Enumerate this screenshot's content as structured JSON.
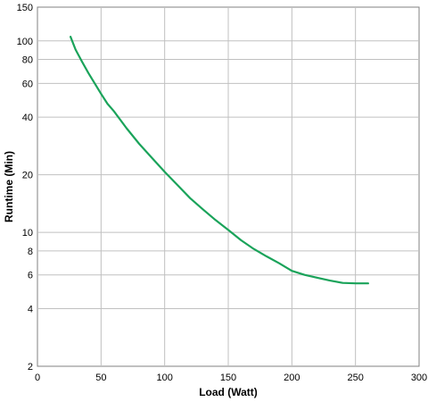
{
  "chart_data": {
    "type": "line",
    "title": "",
    "xlabel": "Load (Watt)",
    "ylabel": "Runtime (Min)",
    "xlim": [
      0,
      300
    ],
    "ylim": [
      2,
      150
    ],
    "yscale": "log",
    "grid": true,
    "legend": "none",
    "x_ticks": [
      0,
      50,
      100,
      150,
      200,
      250,
      300
    ],
    "x_tick_labels": [
      "0",
      "50",
      "100",
      "150",
      "200",
      "250",
      "300"
    ],
    "y_ticks": [
      2,
      4,
      6,
      8,
      10,
      20,
      40,
      60,
      80,
      100,
      150
    ],
    "y_tick_labels": [
      "2",
      "4",
      "6",
      "8",
      "10",
      "20",
      "40",
      "60",
      "80",
      "100",
      "150"
    ],
    "series": [
      {
        "color": "#1aa35a",
        "x": [
          26,
          30,
          35,
          40,
          45,
          50,
          55,
          60,
          70,
          80,
          90,
          100,
          110,
          120,
          130,
          140,
          150,
          160,
          170,
          180,
          190,
          200,
          210,
          220,
          230,
          240,
          250,
          260
        ],
        "y": [
          105,
          90,
          78,
          68,
          60,
          53,
          47,
          43,
          35,
          29,
          24.5,
          20.7,
          17.7,
          15.1,
          13.2,
          11.6,
          10.3,
          9.1,
          8.2,
          7.5,
          6.9,
          6.3,
          6.0,
          5.8,
          5.6,
          5.45,
          5.42,
          5.42
        ]
      }
    ]
  }
}
